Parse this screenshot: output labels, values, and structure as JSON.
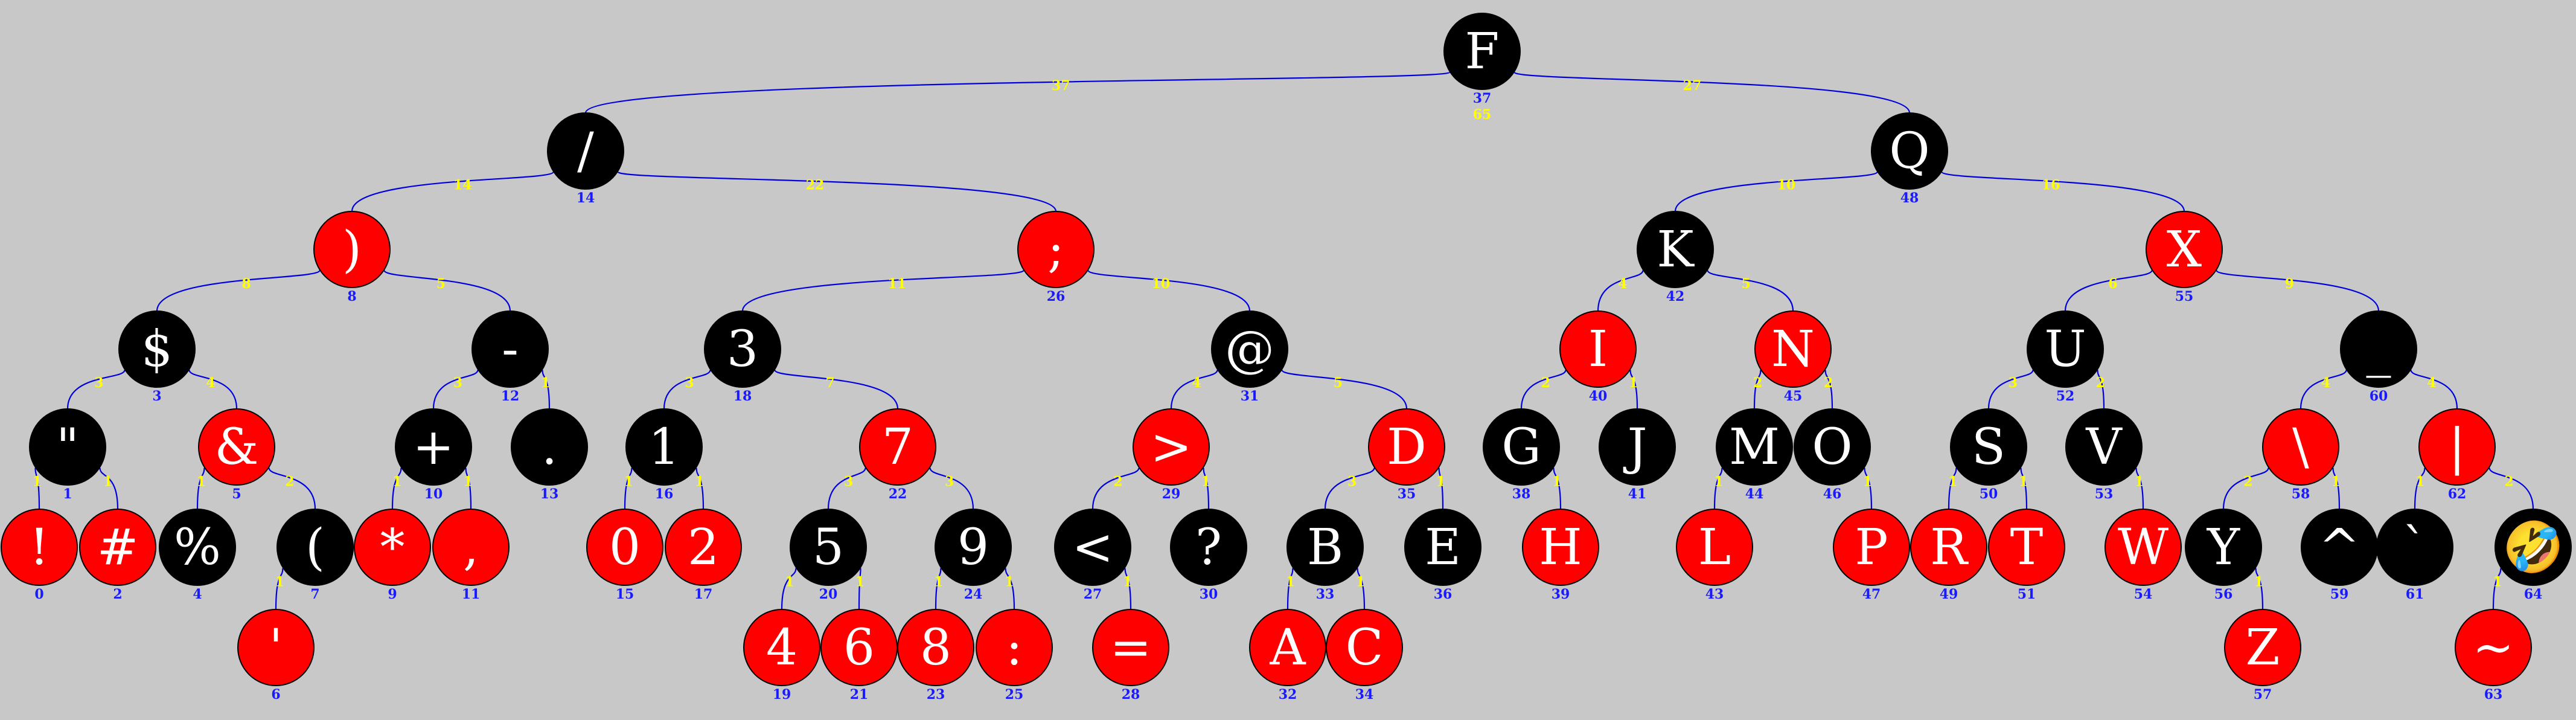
{
  "diagram": {
    "type": "red-black tree",
    "colors": {
      "background": "#c8c8c8",
      "red": "#ff0000",
      "black": "#000000",
      "edge": "#0000dd",
      "index_text": "#1a1aff",
      "size_text": "#ffff00",
      "key_text": "#ffffff"
    },
    "total": "65",
    "nodes": [
      {
        "id": "F",
        "key": "F",
        "index": "37",
        "color": "black"
      },
      {
        "id": "slash",
        "key": "/",
        "index": "14",
        "color": "black"
      },
      {
        "id": "Q",
        "key": "Q",
        "index": "48",
        "color": "black"
      },
      {
        "id": "rparen",
        "key": ")",
        "index": "8",
        "color": "red"
      },
      {
        "id": "semi",
        "key": ";",
        "index": "26",
        "color": "red"
      },
      {
        "id": "K",
        "key": "K",
        "index": "42",
        "color": "black"
      },
      {
        "id": "X",
        "key": "X",
        "index": "55",
        "color": "red"
      },
      {
        "id": "dollar",
        "key": "$",
        "index": "3",
        "color": "black"
      },
      {
        "id": "minus",
        "key": "-",
        "index": "12",
        "color": "black"
      },
      {
        "id": "n3",
        "key": "3",
        "index": "18",
        "color": "black"
      },
      {
        "id": "at",
        "key": "@",
        "index": "31",
        "color": "black"
      },
      {
        "id": "I",
        "key": "I",
        "index": "40",
        "color": "red"
      },
      {
        "id": "N",
        "key": "N",
        "index": "45",
        "color": "red"
      },
      {
        "id": "U",
        "key": "U",
        "index": "52",
        "color": "black"
      },
      {
        "id": "under",
        "key": "_",
        "index": "60",
        "color": "black"
      },
      {
        "id": "dquote",
        "key": "\"",
        "index": "1",
        "color": "black"
      },
      {
        "id": "amp",
        "key": "&",
        "index": "5",
        "color": "red"
      },
      {
        "id": "plus",
        "key": "+",
        "index": "10",
        "color": "black"
      },
      {
        "id": "dot",
        "key": ".",
        "index": "13",
        "color": "black"
      },
      {
        "id": "n1",
        "key": "1",
        "index": "16",
        "color": "black"
      },
      {
        "id": "n7",
        "key": "7",
        "index": "22",
        "color": "red"
      },
      {
        "id": "gt",
        "key": ">",
        "index": "29",
        "color": "red"
      },
      {
        "id": "D",
        "key": "D",
        "index": "35",
        "color": "red"
      },
      {
        "id": "G",
        "key": "G",
        "index": "38",
        "color": "black"
      },
      {
        "id": "J",
        "key": "J",
        "index": "41",
        "color": "black"
      },
      {
        "id": "M",
        "key": "M",
        "index": "44",
        "color": "black"
      },
      {
        "id": "O",
        "key": "O",
        "index": "46",
        "color": "black"
      },
      {
        "id": "S",
        "key": "S",
        "index": "50",
        "color": "black"
      },
      {
        "id": "V",
        "key": "V",
        "index": "53",
        "color": "black"
      },
      {
        "id": "bslash",
        "key": "\\",
        "index": "58",
        "color": "red"
      },
      {
        "id": "pipe",
        "key": "|",
        "index": "62",
        "color": "red"
      },
      {
        "id": "excl",
        "key": "!",
        "index": "0",
        "color": "red"
      },
      {
        "id": "hash",
        "key": "#",
        "index": "2",
        "color": "red"
      },
      {
        "id": "pct",
        "key": "%",
        "index": "4",
        "color": "black"
      },
      {
        "id": "lparen",
        "key": "(",
        "index": "7",
        "color": "black"
      },
      {
        "id": "star",
        "key": "*",
        "index": "9",
        "color": "red"
      },
      {
        "id": "comma",
        "key": ",",
        "index": "11",
        "color": "red"
      },
      {
        "id": "n0",
        "key": "0",
        "index": "15",
        "color": "red"
      },
      {
        "id": "n2",
        "key": "2",
        "index": "17",
        "color": "red"
      },
      {
        "id": "n5",
        "key": "5",
        "index": "20",
        "color": "black"
      },
      {
        "id": "n9",
        "key": "9",
        "index": "24",
        "color": "black"
      },
      {
        "id": "lt",
        "key": "<",
        "index": "27",
        "color": "black"
      },
      {
        "id": "qmark",
        "key": "?",
        "index": "30",
        "color": "black"
      },
      {
        "id": "B",
        "key": "B",
        "index": "33",
        "color": "black"
      },
      {
        "id": "E",
        "key": "E",
        "index": "36",
        "color": "black"
      },
      {
        "id": "H",
        "key": "H",
        "index": "39",
        "color": "red"
      },
      {
        "id": "L",
        "key": "L",
        "index": "43",
        "color": "red"
      },
      {
        "id": "P",
        "key": "P",
        "index": "47",
        "color": "red"
      },
      {
        "id": "R",
        "key": "R",
        "index": "49",
        "color": "red"
      },
      {
        "id": "T",
        "key": "T",
        "index": "51",
        "color": "red"
      },
      {
        "id": "W",
        "key": "W",
        "index": "54",
        "color": "red"
      },
      {
        "id": "Y",
        "key": "Y",
        "index": "56",
        "color": "black"
      },
      {
        "id": "caret",
        "key": "^",
        "index": "59",
        "color": "black"
      },
      {
        "id": "btick",
        "key": "`",
        "index": "61",
        "color": "black"
      },
      {
        "id": "emoji",
        "key": "🤣",
        "index": "64",
        "color": "black"
      },
      {
        "id": "squote",
        "key": "'",
        "index": "6",
        "color": "red"
      },
      {
        "id": "n4",
        "key": "4",
        "index": "19",
        "color": "red"
      },
      {
        "id": "n6",
        "key": "6",
        "index": "21",
        "color": "red"
      },
      {
        "id": "n8",
        "key": "8",
        "index": "23",
        "color": "red"
      },
      {
        "id": "colon",
        "key": ":",
        "index": "25",
        "color": "red"
      },
      {
        "id": "eq",
        "key": "=",
        "index": "28",
        "color": "red"
      },
      {
        "id": "A",
        "key": "A",
        "index": "32",
        "color": "red"
      },
      {
        "id": "C",
        "key": "C",
        "index": "34",
        "color": "red"
      },
      {
        "id": "Z",
        "key": "Z",
        "index": "57",
        "color": "red"
      },
      {
        "id": "tilde",
        "key": "~",
        "index": "63",
        "color": "red"
      }
    ],
    "edges": [
      {
        "from": "F",
        "to": "slash",
        "size": "37"
      },
      {
        "from": "F",
        "to": "Q",
        "size": "27"
      },
      {
        "from": "slash",
        "to": "rparen",
        "size": "14"
      },
      {
        "from": "slash",
        "to": "semi",
        "size": "22"
      },
      {
        "from": "Q",
        "to": "K",
        "size": "10"
      },
      {
        "from": "Q",
        "to": "X",
        "size": "16"
      },
      {
        "from": "rparen",
        "to": "dollar",
        "size": "8"
      },
      {
        "from": "rparen",
        "to": "minus",
        "size": "5"
      },
      {
        "from": "semi",
        "to": "n3",
        "size": "11"
      },
      {
        "from": "semi",
        "to": "at",
        "size": "10"
      },
      {
        "from": "K",
        "to": "I",
        "size": "4"
      },
      {
        "from": "K",
        "to": "N",
        "size": "5"
      },
      {
        "from": "X",
        "to": "U",
        "size": "6"
      },
      {
        "from": "X",
        "to": "under",
        "size": "9"
      },
      {
        "from": "dollar",
        "to": "dquote",
        "size": "3"
      },
      {
        "from": "dollar",
        "to": "amp",
        "size": "4"
      },
      {
        "from": "minus",
        "to": "plus",
        "size": "3"
      },
      {
        "from": "minus",
        "to": "dot",
        "size": "1"
      },
      {
        "from": "n3",
        "to": "n1",
        "size": "3"
      },
      {
        "from": "n3",
        "to": "n7",
        "size": "7"
      },
      {
        "from": "at",
        "to": "gt",
        "size": "4"
      },
      {
        "from": "at",
        "to": "D",
        "size": "5"
      },
      {
        "from": "I",
        "to": "G",
        "size": "2"
      },
      {
        "from": "I",
        "to": "J",
        "size": "1"
      },
      {
        "from": "N",
        "to": "M",
        "size": "2"
      },
      {
        "from": "N",
        "to": "O",
        "size": "2"
      },
      {
        "from": "U",
        "to": "S",
        "size": "3"
      },
      {
        "from": "U",
        "to": "V",
        "size": "2"
      },
      {
        "from": "under",
        "to": "bslash",
        "size": "4"
      },
      {
        "from": "under",
        "to": "pipe",
        "size": "4"
      },
      {
        "from": "dquote",
        "to": "excl",
        "size": "1"
      },
      {
        "from": "dquote",
        "to": "hash",
        "size": "1"
      },
      {
        "from": "amp",
        "to": "pct",
        "size": "1"
      },
      {
        "from": "amp",
        "to": "lparen",
        "size": "2"
      },
      {
        "from": "plus",
        "to": "star",
        "size": "1"
      },
      {
        "from": "plus",
        "to": "comma",
        "size": "1"
      },
      {
        "from": "n1",
        "to": "n0",
        "size": "1"
      },
      {
        "from": "n1",
        "to": "n2",
        "size": "1"
      },
      {
        "from": "n7",
        "to": "n5",
        "size": "3"
      },
      {
        "from": "n7",
        "to": "n9",
        "size": "3"
      },
      {
        "from": "gt",
        "to": "lt",
        "size": "2"
      },
      {
        "from": "gt",
        "to": "qmark",
        "size": "1"
      },
      {
        "from": "D",
        "to": "B",
        "size": "3"
      },
      {
        "from": "D",
        "to": "E",
        "size": "1"
      },
      {
        "from": "G",
        "to": "H",
        "size": "1"
      },
      {
        "from": "M",
        "to": "L",
        "size": "1"
      },
      {
        "from": "O",
        "to": "P",
        "size": "1"
      },
      {
        "from": "S",
        "to": "R",
        "size": "1"
      },
      {
        "from": "S",
        "to": "T",
        "size": "1"
      },
      {
        "from": "V",
        "to": "W",
        "size": "1"
      },
      {
        "from": "bslash",
        "to": "Y",
        "size": "2"
      },
      {
        "from": "bslash",
        "to": "caret",
        "size": "1"
      },
      {
        "from": "pipe",
        "to": "btick",
        "size": "1"
      },
      {
        "from": "pipe",
        "to": "emoji",
        "size": "2"
      },
      {
        "from": "lparen",
        "to": "squote",
        "size": "1"
      },
      {
        "from": "n5",
        "to": "n4",
        "size": "1"
      },
      {
        "from": "n5",
        "to": "n6",
        "size": "1"
      },
      {
        "from": "n9",
        "to": "n8",
        "size": "1"
      },
      {
        "from": "n9",
        "to": "colon",
        "size": "1"
      },
      {
        "from": "lt",
        "to": "eq",
        "size": "1"
      },
      {
        "from": "B",
        "to": "A",
        "size": "1"
      },
      {
        "from": "B",
        "to": "C",
        "size": "1"
      },
      {
        "from": "Y",
        "to": "Z",
        "size": "1"
      },
      {
        "from": "emoji",
        "to": "tilde",
        "size": "1"
      }
    ]
  }
}
